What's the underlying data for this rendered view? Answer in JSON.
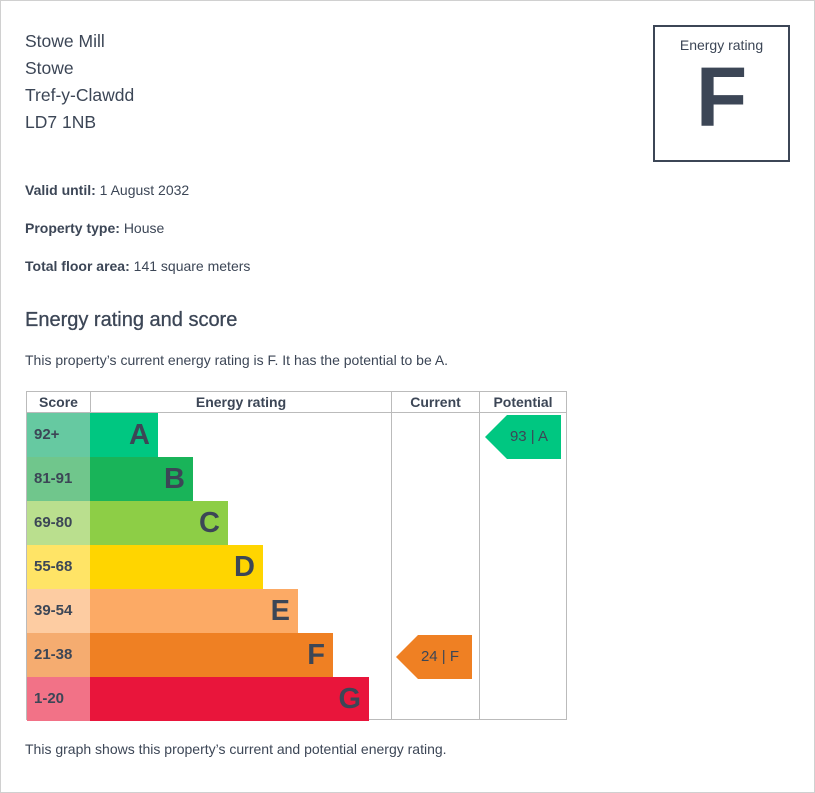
{
  "address": [
    "Stowe Mill",
    "Stowe",
    "Tref-y-Clawdd",
    "LD7 1NB"
  ],
  "rating_box": {
    "label": "Energy rating",
    "value": "F"
  },
  "details": [
    {
      "label": "Valid until:",
      "value": "1 August 2032"
    },
    {
      "label": "Property type:",
      "value": "House"
    },
    {
      "label": "Total floor area:",
      "value": "141 square meters"
    }
  ],
  "section_title": "Energy rating and score",
  "summary": "This property’s current energy rating is F. It has the potential to be A.",
  "table": {
    "headers": [
      "Score",
      "Energy rating",
      "Current",
      "Potential"
    ],
    "bands": [
      {
        "score": "92+",
        "letter": "A",
        "color": "#00c781",
        "tint": "#66c9a1"
      },
      {
        "score": "81-91",
        "letter": "B",
        "color": "#19b459",
        "tint": "#70c68c"
      },
      {
        "score": "69-80",
        "letter": "C",
        "color": "#8dce46",
        "tint": "#badf8e"
      },
      {
        "score": "55-68",
        "letter": "D",
        "color": "#ffd500",
        "tint": "#ffe466"
      },
      {
        "score": "39-54",
        "letter": "E",
        "color": "#fcaa65",
        "tint": "#fdcca2"
      },
      {
        "score": "21-38",
        "letter": "F",
        "color": "#ef8023",
        "tint": "#f5ac70"
      },
      {
        "score": "1-20",
        "letter": "G",
        "color": "#e9153b",
        "tint": "#f27287"
      }
    ],
    "current": {
      "label": "24 | F",
      "score": 24,
      "band": "F",
      "color": "#ef8023"
    },
    "potential": {
      "label": "93 | A",
      "score": 93,
      "band": "A",
      "color": "#00c781"
    }
  },
  "caption": "This graph shows this property’s current and potential energy rating."
}
